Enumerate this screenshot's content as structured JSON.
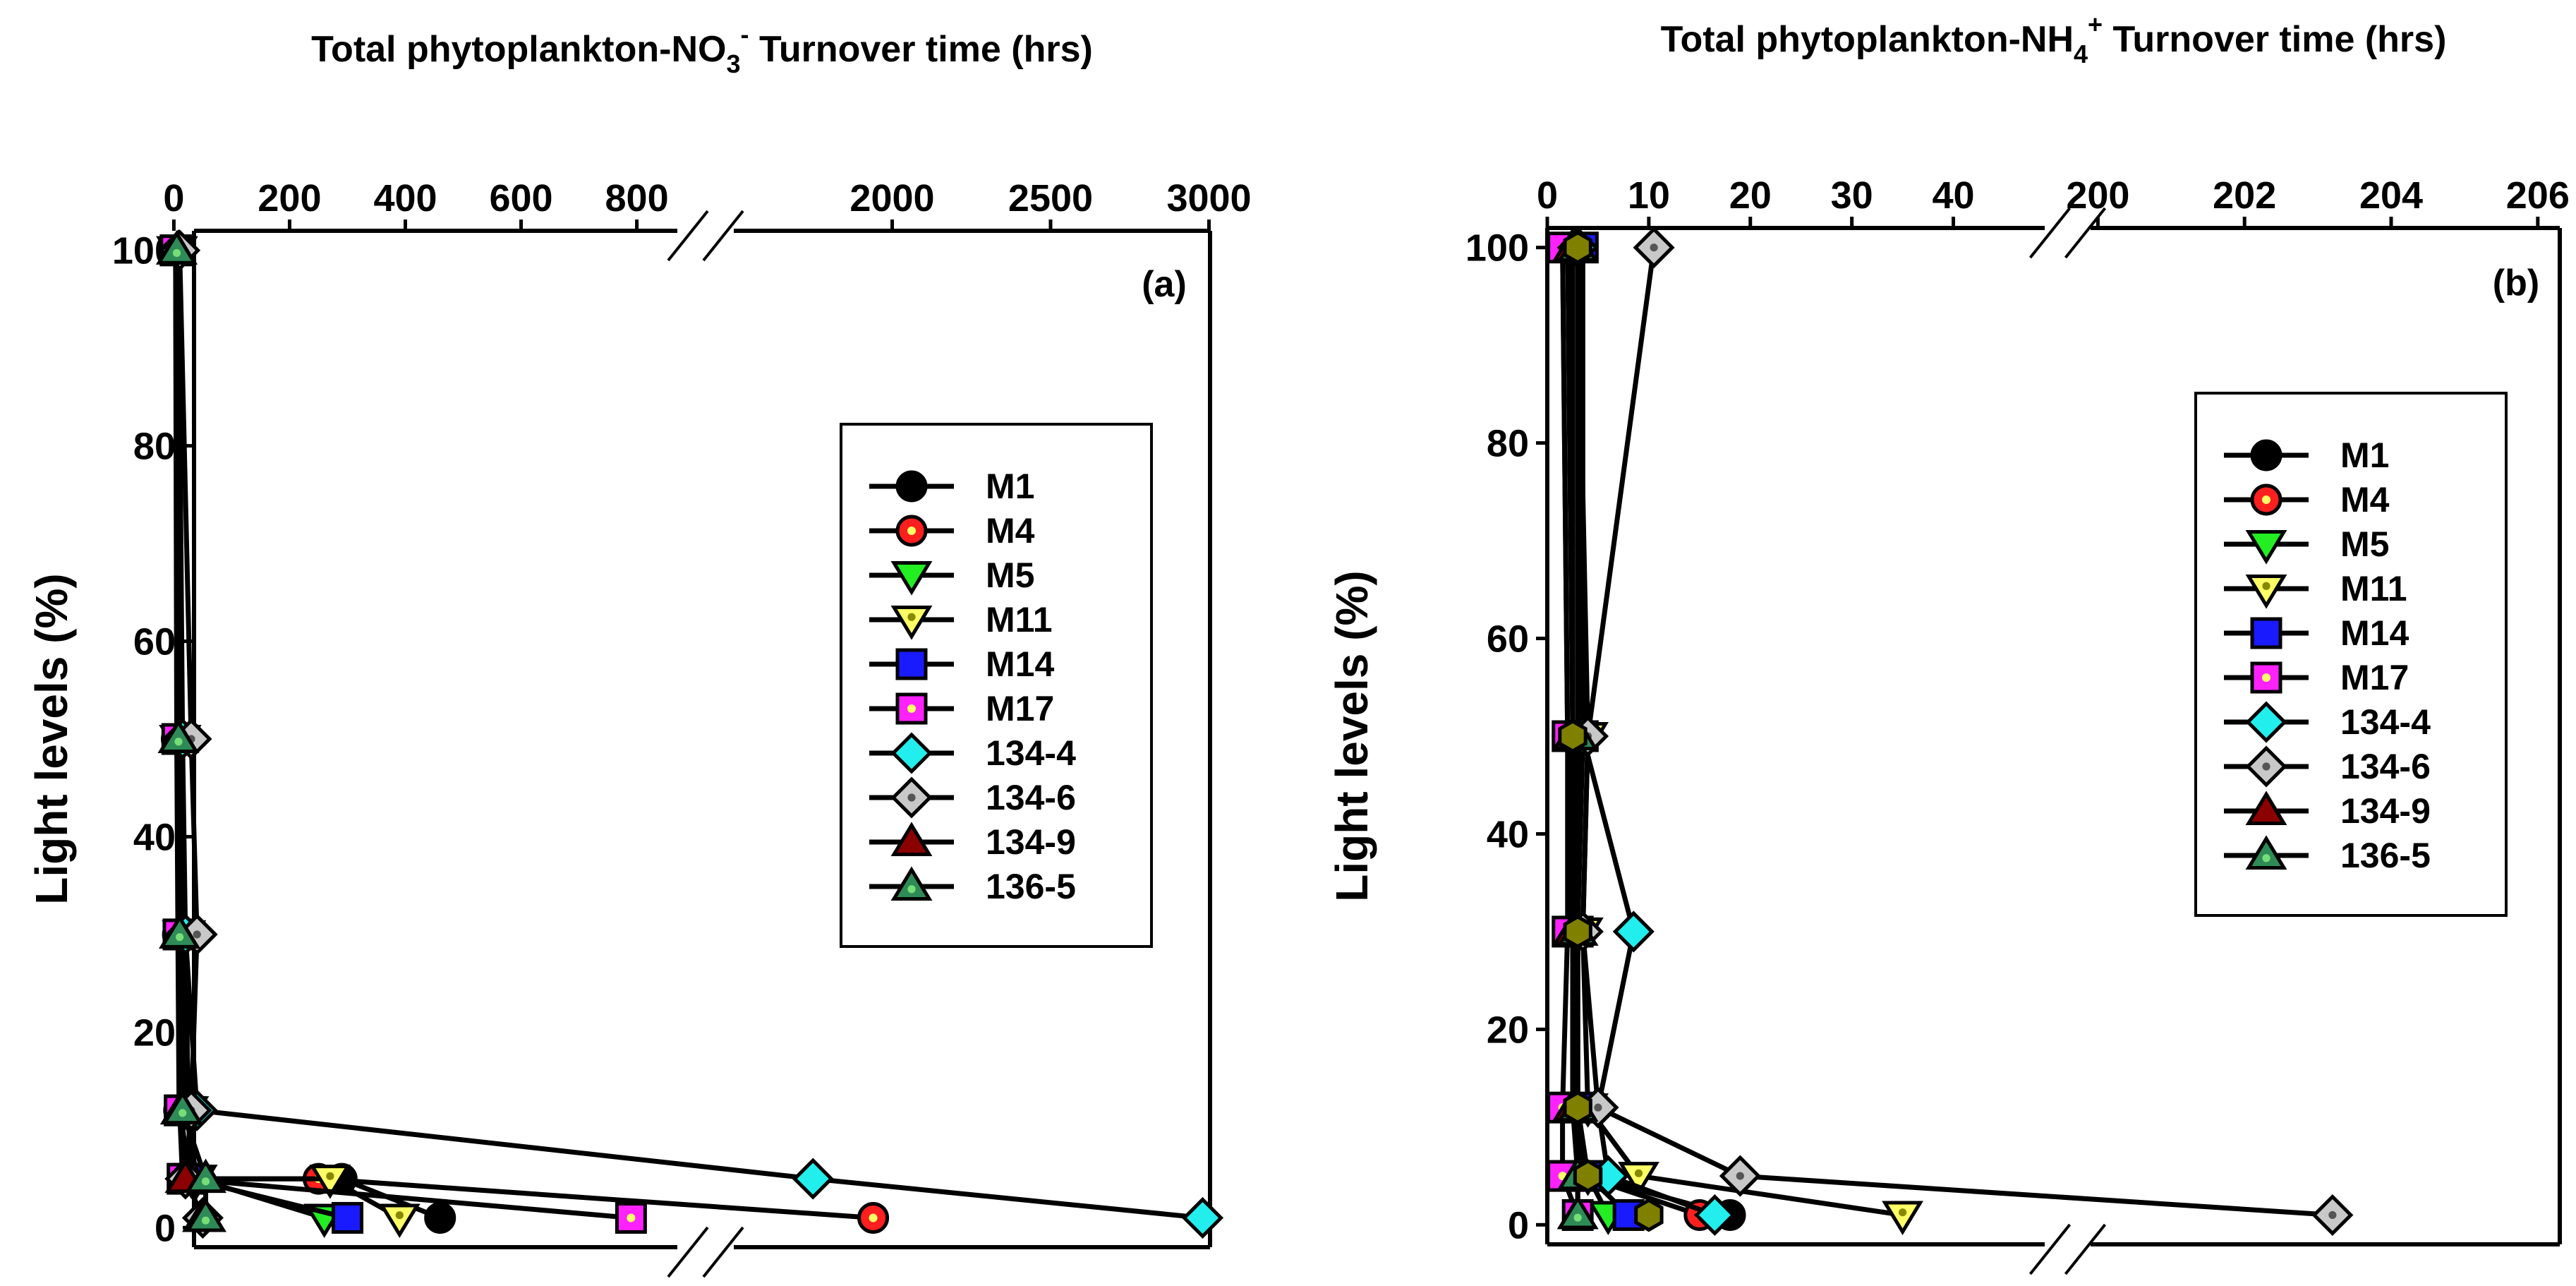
{
  "colors": {
    "M1": "#000000",
    "M4": "#ff1f1f",
    "M5": "#22ee22",
    "M11": "#ffff66",
    "M14": "#1a1aff",
    "M17": "#ff22ff",
    "134-4": "#22eeee",
    "134-6": "#c8c8c8",
    "134-9": "#8b0000",
    "136-5": "#2e8b57",
    "overlap": "#808000"
  },
  "icons": {
    "M1": "filled-circle",
    "M4": "dotted-circle",
    "M5": "down-triangle",
    "M11": "dotted-down-triangle",
    "M14": "square",
    "M17": "dotted-square",
    "134-4": "diamond",
    "134-6": "dotted-diamond",
    "134-9": "up-triangle",
    "136-5": "dotted-up-triangle",
    "overlap": "hexagon"
  },
  "chart_data": [
    {
      "type": "line",
      "panel_label": "(a)",
      "title_parts": [
        "Total phytoplankton-NO",
        "3",
        "-",
        " Turnover time (hrs)"
      ],
      "xlabel": "",
      "ylabel": "Light levels (%)",
      "x_axis_position": "top",
      "x_broken": true,
      "x_segments": [
        {
          "range": [
            -20,
            870
          ],
          "ticks": [
            0,
            200,
            400,
            600,
            800
          ],
          "tick_labels": [
            "0",
            "200",
            "400",
            "600",
            "800"
          ]
        },
        {
          "range": [
            1500,
            3010
          ],
          "ticks": [
            2000,
            2500,
            3000
          ],
          "tick_labels": [
            "2000",
            "2500",
            "3000"
          ]
        }
      ],
      "y_ticks": [
        0,
        20,
        40,
        60,
        80,
        100
      ],
      "y_tick_labels": [
        "0",
        "20",
        "40",
        "60",
        "80",
        "100"
      ],
      "ylim": [
        -2,
        102
      ],
      "legend_position": "right-middle",
      "legend_order": [
        "M1",
        "M4",
        "M5",
        "M11",
        "M14",
        "M17",
        "134-4",
        "134-6",
        "134-9",
        "136-5"
      ],
      "series": [
        {
          "name": "M1",
          "points": [
            [
              5,
              100
            ],
            [
              8,
              50
            ],
            [
              10,
              30
            ],
            [
              12,
              12
            ],
            [
              20,
              5
            ],
            [
              290,
              5
            ],
            [
              460,
              1
            ]
          ]
        },
        {
          "name": "M4",
          "points": [
            [
              3,
              100
            ],
            [
              5,
              50
            ],
            [
              7,
              30
            ],
            [
              9,
              12
            ],
            [
              30,
              5
            ],
            [
              250,
              5
            ],
            [
              1940,
              1
            ]
          ]
        },
        {
          "name": "M5",
          "points": [
            [
              5,
              100
            ],
            [
              10,
              50
            ],
            [
              15,
              30
            ],
            [
              20,
              12
            ],
            [
              40,
              5
            ],
            [
              260,
              1
            ]
          ]
        },
        {
          "name": "M11",
          "points": [
            [
              6,
              100
            ],
            [
              12,
              50
            ],
            [
              20,
              30
            ],
            [
              25,
              12
            ],
            [
              30,
              5
            ],
            [
              270,
              5
            ],
            [
              390,
              1
            ]
          ]
        },
        {
          "name": "M14",
          "points": [
            [
              4,
              100
            ],
            [
              7,
              50
            ],
            [
              9,
              30
            ],
            [
              12,
              12
            ],
            [
              25,
              5
            ],
            [
              300,
              1
            ]
          ]
        },
        {
          "name": "M17",
          "points": [
            [
              3,
              100
            ],
            [
              6,
              50
            ],
            [
              8,
              30
            ],
            [
              10,
              12
            ],
            [
              15,
              5
            ],
            [
              790,
              1
            ]
          ]
        },
        {
          "name": "134-4",
          "points": [
            [
              8,
              100
            ],
            [
              15,
              50
            ],
            [
              20,
              30
            ],
            [
              40,
              12
            ],
            [
              1750,
              5
            ],
            [
              2980,
              1
            ]
          ]
        },
        {
          "name": "134-6",
          "points": [
            [
              10,
              100
            ],
            [
              30,
              50
            ],
            [
              40,
              30
            ],
            [
              30,
              12
            ],
            [
              20,
              5
            ],
            [
              50,
              1
            ]
          ]
        },
        {
          "name": "134-9",
          "points": [
            [
              5,
              100
            ],
            [
              8,
              50
            ],
            [
              10,
              30
            ],
            [
              12,
              12
            ],
            [
              20,
              5
            ],
            [
              50,
              1
            ]
          ]
        },
        {
          "name": "136-5",
          "points": [
            [
              5,
              100
            ],
            [
              8,
              50
            ],
            [
              10,
              30
            ],
            [
              15,
              12
            ],
            [
              55,
              5
            ],
            [
              55,
              1
            ]
          ]
        }
      ]
    },
    {
      "type": "line",
      "panel_label": "(b)",
      "title_parts": [
        "Total phytoplankton-NH",
        "4",
        "+",
        " Turnover time (hrs)"
      ],
      "xlabel": "",
      "ylabel": "Light levels (%)",
      "x_axis_position": "top",
      "x_broken": true,
      "x_segments": [
        {
          "range": [
            0,
            49
          ],
          "ticks": [
            0,
            10,
            20,
            30,
            40
          ],
          "tick_labels": [
            "0",
            "10",
            "20",
            "30",
            "40"
          ]
        },
        {
          "range": [
            199.9,
            206.3
          ],
          "ticks": [
            200,
            202,
            204,
            206
          ],
          "tick_labels": [
            "200",
            "202",
            "204",
            "206"
          ]
        }
      ],
      "y_ticks": [
        0,
        20,
        40,
        60,
        80,
        100
      ],
      "y_tick_labels": [
        "0",
        "20",
        "40",
        "60",
        "80",
        "100"
      ],
      "ylim": [
        -2,
        102
      ],
      "legend_position": "right-middle",
      "legend_order": [
        "M1",
        "M4",
        "M5",
        "M11",
        "M14",
        "M17",
        "134-4",
        "134-6",
        "134-9",
        "136-5"
      ],
      "series": [
        {
          "name": "M1",
          "points": [
            [
              2.5,
              100
            ],
            [
              2.5,
              50
            ],
            [
              2.8,
              30
            ],
            [
              3,
              12
            ],
            [
              4,
              5
            ],
            [
              18,
              1
            ]
          ]
        },
        {
          "name": "M4",
          "points": [
            [
              1.5,
              100
            ],
            [
              2,
              50
            ],
            [
              2.5,
              30
            ],
            [
              3,
              12
            ],
            [
              3.5,
              5
            ],
            [
              15,
              1
            ]
          ]
        },
        {
          "name": "M5",
          "points": [
            [
              2,
              100
            ],
            [
              2.5,
              50
            ],
            [
              3,
              30
            ],
            [
              3,
              12
            ],
            [
              4,
              5
            ],
            [
              6,
              1
            ]
          ]
        },
        {
          "name": "M11",
          "points": [
            [
              3,
              100
            ],
            [
              4,
              50
            ],
            [
              3.5,
              30
            ],
            [
              4,
              12
            ],
            [
              9,
              5
            ],
            [
              35,
              1
            ]
          ]
        },
        {
          "name": "M14",
          "points": [
            [
              3.5,
              100
            ],
            [
              3.5,
              50
            ],
            [
              3,
              30
            ],
            [
              3,
              12
            ],
            [
              4,
              5
            ],
            [
              8,
              1
            ]
          ]
        },
        {
          "name": "M17",
          "points": [
            [
              1.5,
              100
            ],
            [
              2,
              50
            ],
            [
              2,
              30
            ],
            [
              1.5,
              12
            ],
            [
              1.5,
              5
            ],
            [
              3,
              1
            ]
          ]
        },
        {
          "name": "134-4",
          "points": [
            [
              3,
              100
            ],
            [
              3.5,
              50
            ],
            [
              8.5,
              30
            ],
            [
              5,
              12
            ],
            [
              6,
              5
            ],
            [
              16.5,
              1
            ]
          ]
        },
        {
          "name": "134-6",
          "points": [
            [
              10.5,
              100
            ],
            [
              4,
              50
            ],
            [
              3.5,
              30
            ],
            [
              5,
              12
            ],
            [
              19,
              5
            ],
            [
              203.2,
              1
            ]
          ]
        },
        {
          "name": "134-9",
          "points": [
            [
              2.5,
              100
            ],
            [
              2.5,
              50
            ],
            [
              2.5,
              30
            ],
            [
              2.5,
              12
            ],
            [
              3,
              5
            ],
            [
              3,
              1
            ]
          ]
        },
        {
          "name": "136-5",
          "points": [
            [
              3,
              100
            ],
            [
              3,
              50
            ],
            [
              3,
              30
            ],
            [
              3,
              12
            ],
            [
              3,
              5
            ],
            [
              3,
              1
            ]
          ]
        }
      ],
      "overlap_markers": {
        "name": "overlap",
        "points": [
          [
            3,
            100
          ],
          [
            2.5,
            50
          ],
          [
            3,
            30
          ],
          [
            3,
            12
          ],
          [
            4,
            5
          ],
          [
            10,
            1
          ]
        ]
      }
    }
  ]
}
